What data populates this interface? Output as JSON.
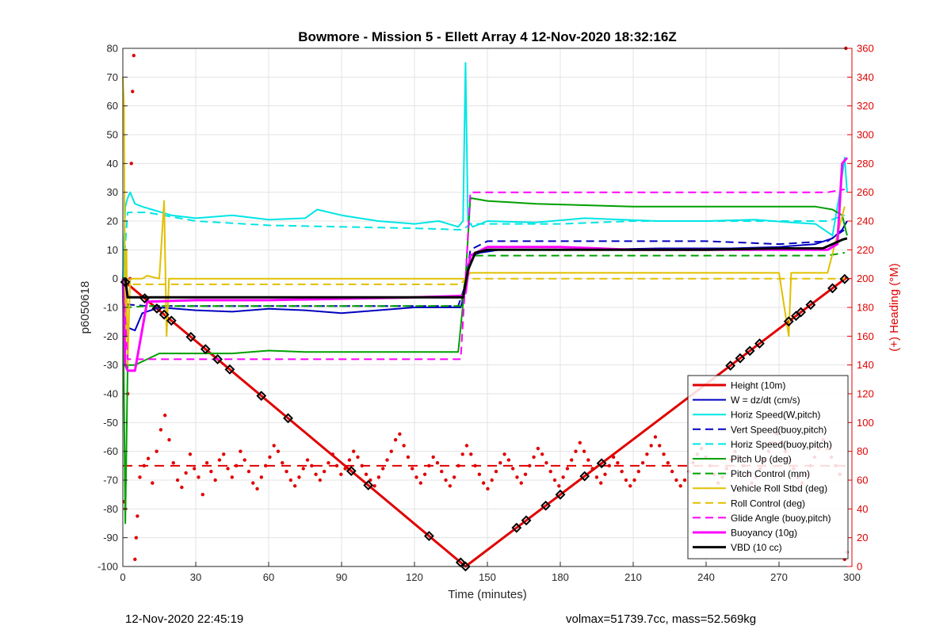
{
  "chart_data": {
    "type": "line",
    "title": "Bowmore - Mission 5 - Ellett Array 4 12-Nov-2020 18:32:16Z",
    "xlabel": "Time (minutes)",
    "ylabel": "p6050618",
    "y2label": "(+) Heading (°M)",
    "xlim": [
      0,
      300
    ],
    "ylim": [
      -100,
      80
    ],
    "y2lim": [
      0,
      360
    ],
    "xticks": [
      0,
      30,
      60,
      90,
      120,
      150,
      180,
      210,
      240,
      270,
      300
    ],
    "yticks": [
      -100,
      -90,
      -80,
      -70,
      -60,
      -50,
      -40,
      -30,
      -20,
      -10,
      0,
      10,
      20,
      30,
      40,
      50,
      60,
      70,
      80
    ],
    "y2ticks": [
      0,
      20,
      40,
      60,
      80,
      100,
      120,
      140,
      160,
      180,
      200,
      220,
      240,
      260,
      280,
      300,
      320,
      340,
      360
    ],
    "grid": true,
    "legend_position": "bottom-right",
    "series": [
      {
        "name": "Height (10m)",
        "color": "#e00000",
        "style": "solid",
        "width": 3,
        "x": [
          0,
          141,
          298
        ],
        "y": [
          -0.5,
          -100,
          0.5
        ]
      },
      {
        "name": "W = dz/dt (cm/s)",
        "color": "#0000c0",
        "style": "solid",
        "width": 2,
        "x": [
          0,
          1,
          2,
          5,
          8,
          15,
          30,
          45,
          60,
          75,
          90,
          105,
          120,
          139,
          141,
          143,
          147,
          155,
          170,
          190,
          220,
          250,
          270,
          285,
          292,
          296,
          298
        ],
        "y": [
          0,
          -10,
          -17,
          -18,
          -12,
          -10,
          -11,
          -11.5,
          -10.5,
          -11,
          -12,
          -11,
          -10,
          -10,
          -4,
          8,
          9,
          10,
          10,
          10,
          10.5,
          10.5,
          11,
          12,
          14,
          17,
          20
        ]
      },
      {
        "name": "Horiz Speed(W,pitch)",
        "color": "#00e5e5",
        "style": "solid",
        "width": 2,
        "x": [
          0,
          1,
          2,
          3,
          5,
          8,
          12,
          20,
          30,
          45,
          60,
          75,
          80,
          90,
          105,
          120,
          130,
          138,
          140,
          141,
          142,
          144,
          150,
          170,
          190,
          220,
          240,
          260,
          275,
          285,
          292,
          295,
          297,
          298
        ],
        "y": [
          0,
          25,
          28,
          30,
          26,
          25,
          24,
          22,
          21,
          22,
          20.5,
          21,
          24,
          22,
          20,
          19,
          20,
          18,
          20,
          75,
          20,
          18,
          20,
          19.5,
          21,
          20,
          20,
          20.5,
          19.5,
          19,
          15,
          30,
          42,
          30
        ]
      },
      {
        "name": "Vert Speed(buoy,pitch)",
        "color": "#0000c0",
        "style": "dashed",
        "width": 2,
        "x": [
          0,
          2,
          10,
          30,
          60,
          90,
          120,
          138,
          141,
          143,
          150,
          180,
          210,
          240,
          270,
          290,
          297
        ],
        "y": [
          0,
          -9,
          -9.5,
          -9.5,
          -9.5,
          -9.5,
          -9.5,
          -9.5,
          -2,
          10,
          13,
          13,
          13,
          13,
          12,
          13,
          17
        ]
      },
      {
        "name": "Horiz Speed(buoy,pitch)",
        "color": "#00e5e5",
        "style": "dashed",
        "width": 2,
        "x": [
          0,
          2,
          10,
          30,
          60,
          90,
          120,
          138,
          140,
          143,
          150,
          180,
          210,
          240,
          270,
          290,
          297
        ],
        "y": [
          0,
          23,
          23,
          20,
          18.5,
          18,
          17.5,
          17,
          17,
          19,
          19,
          19,
          20,
          20,
          20,
          20,
          22
        ]
      },
      {
        "name": "Pitch Up (deg)",
        "color": "#00a000",
        "style": "solid",
        "width": 2,
        "x": [
          0,
          1,
          2,
          5,
          10,
          15,
          30,
          45,
          60,
          75,
          90,
          105,
          120,
          138,
          141,
          143,
          150,
          170,
          190,
          210,
          240,
          260,
          275,
          285,
          292,
          296,
          298
        ],
        "y": [
          0,
          -85,
          -30,
          -30,
          -28,
          -26,
          -26,
          -26,
          -25,
          -25.5,
          -25.5,
          -25.5,
          -25.5,
          -25.5,
          0,
          28,
          27,
          26,
          25.5,
          25,
          25,
          25,
          25,
          25,
          24,
          22,
          15
        ]
      },
      {
        "name": "Pitch Control (mm)",
        "color": "#00a000",
        "style": "dashed",
        "width": 2,
        "x": [
          0,
          2,
          10,
          30,
          60,
          90,
          120,
          139,
          141,
          143,
          150,
          180,
          210,
          240,
          270,
          290,
          297
        ],
        "y": [
          0,
          -10,
          -9.5,
          -9.5,
          -9.5,
          -9.5,
          -9.5,
          -9.5,
          0,
          8,
          8,
          8,
          8,
          8,
          8,
          8,
          9
        ]
      },
      {
        "name": "Vehicle Roll Stbd (deg)",
        "color": "#e0c000",
        "style": "solid",
        "width": 2,
        "x": [
          0,
          0.5,
          1,
          1.5,
          2,
          3,
          5,
          8,
          10,
          15,
          17,
          18,
          19,
          20,
          30,
          45,
          60,
          90,
          120,
          139,
          141,
          143,
          150,
          180,
          210,
          240,
          270,
          274,
          275,
          276,
          280,
          290,
          297
        ],
        "y": [
          70,
          60,
          -25,
          10,
          -30,
          0,
          0,
          0,
          1,
          0,
          27,
          -20,
          0,
          0,
          0,
          0,
          0,
          0,
          0,
          0,
          0,
          2,
          2,
          2,
          2,
          2,
          2,
          -20,
          2,
          2,
          2,
          2,
          25
        ]
      },
      {
        "name": "Roll Control (deg)",
        "color": "#e0c000",
        "style": "dashed",
        "width": 2,
        "x": [
          0,
          2,
          5,
          10,
          15,
          30,
          60,
          90,
          120,
          139,
          141,
          143,
          150,
          180,
          210,
          240,
          270,
          290,
          297
        ],
        "y": [
          0,
          -2,
          -2,
          -2,
          -2,
          -2,
          -2,
          -2,
          -2,
          -2,
          0,
          0,
          0,
          0,
          0,
          0,
          0,
          0,
          0
        ]
      },
      {
        "name": "Glide Angle (buoy,pitch)",
        "color": "#ff00ff",
        "style": "dashed",
        "width": 2,
        "x": [
          0,
          2,
          10,
          30,
          60,
          90,
          120,
          139,
          141,
          143,
          150,
          180,
          210,
          240,
          270,
          290,
          297
        ],
        "y": [
          0,
          -28,
          -28,
          -28,
          -28,
          -28,
          -28,
          -28,
          0,
          30,
          30,
          30,
          30,
          30,
          30,
          30,
          31
        ]
      },
      {
        "name": "Buoyancy (10g)",
        "color": "#ff00ff",
        "style": "solid",
        "width": 3,
        "x": [
          0,
          1,
          2,
          5,
          10,
          30,
          60,
          90,
          120,
          139,
          141,
          143,
          150,
          180,
          210,
          240,
          270,
          290,
          294,
          296,
          298
        ],
        "y": [
          0,
          -30,
          -32,
          -32,
          -8,
          -7.5,
          -7.5,
          -7,
          -6.5,
          -6,
          -5,
          8,
          11,
          11,
          10,
          10,
          10,
          10,
          12,
          40,
          42
        ]
      },
      {
        "name": "VBD (10 cc)",
        "color": "#000000",
        "style": "solid",
        "width": 3,
        "x": [
          0,
          1,
          2,
          5,
          10,
          30,
          60,
          90,
          120,
          139,
          140,
          142,
          145,
          150,
          180,
          210,
          240,
          270,
          288,
          292,
          296,
          298
        ],
        "y": [
          0,
          0,
          -6.5,
          -6.5,
          -6.5,
          -6.5,
          -6.5,
          -6.5,
          -6.5,
          -6.5,
          -6.5,
          3,
          9,
          10,
          10,
          10,
          10,
          10.5,
          10.5,
          12,
          13.5,
          14
        ]
      }
    ],
    "heading": {
      "color": "#e00000",
      "mean_deg": 70,
      "scatter_deg": [
        62,
        70,
        75,
        58,
        80,
        95,
        105,
        88,
        72,
        60,
        55,
        65,
        78,
        68,
        62,
        50,
        72,
        66,
        60,
        74,
        78,
        68,
        62,
        70,
        80,
        74,
        66,
        58,
        54,
        62,
        70,
        76,
        84,
        80,
        72,
        66,
        60,
        56,
        62,
        68,
        74,
        70,
        64,
        60,
        66,
        72,
        78,
        70,
        64,
        68,
        74,
        80,
        76,
        70,
        64,
        60,
        56,
        62,
        68,
        74,
        80,
        88,
        92,
        84,
        76,
        68,
        62,
        58,
        64,
        70,
        76,
        72,
        66,
        60,
        56,
        62,
        70,
        78,
        84,
        78,
        70,
        64,
        58,
        54,
        60,
        66,
        72,
        78,
        74,
        68,
        62,
        58,
        64,
        70,
        76,
        82,
        78,
        72,
        66,
        60,
        56,
        62,
        68,
        74,
        80,
        86,
        80,
        74,
        68,
        62,
        58,
        64,
        70,
        76,
        72,
        66,
        60,
        56,
        60,
        66,
        72,
        78,
        84,
        90,
        84,
        78,
        72,
        66,
        60,
        56,
        60,
        66,
        72,
        78,
        82,
        76,
        70,
        64,
        58,
        62,
        68,
        74,
        80,
        76,
        70,
        64,
        58,
        62,
        68,
        74,
        80,
        86,
        92,
        86,
        80,
        74,
        68,
        62,
        58,
        64,
        70,
        76,
        82,
        88,
        82,
        76,
        70,
        64
      ]
    }
  },
  "footer": {
    "timestamp": "12-Nov-2020 22:45:19",
    "info": "volmax=51739.7cc, mass=52.569kg"
  }
}
